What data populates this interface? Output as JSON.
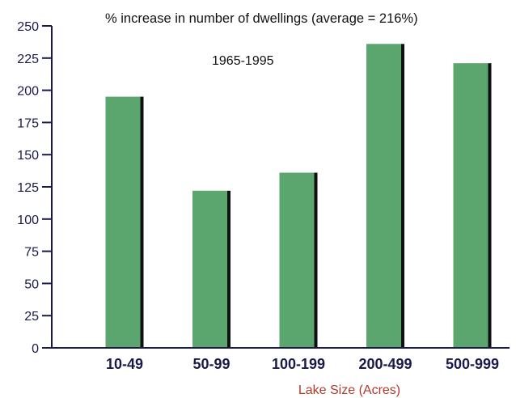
{
  "chart_data": {
    "type": "bar",
    "title": "% increase in number of dwellings (average = 216%)",
    "subtitle": "1965-1995",
    "xlabel": "Lake Size (Acres)",
    "ylabel": "",
    "categories": [
      "10-49",
      "50-99",
      "100-199",
      "200-499",
      "500-999"
    ],
    "values": [
      195,
      122,
      136,
      236,
      221
    ],
    "ylim": [
      0,
      250
    ],
    "yticks": [
      0,
      25,
      50,
      75,
      100,
      125,
      150,
      175,
      200,
      225,
      250
    ],
    "grid": false,
    "colors": {
      "bar": "#5aa66e",
      "bar_shadow": "#111111",
      "axis": "#1a1a4a",
      "xlabel": "#b23a2a"
    }
  }
}
